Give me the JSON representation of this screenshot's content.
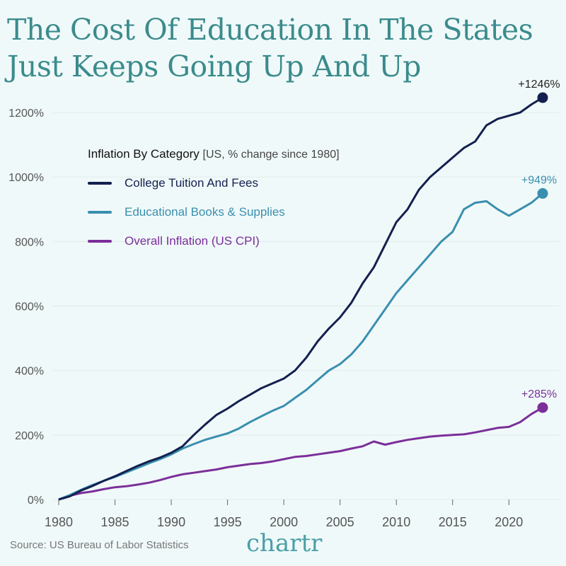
{
  "title_lines": [
    "The Cost Of Education In The States",
    "Just Keeps Going Up And Up"
  ],
  "source": "Source: US Bureau of Labor Statistics",
  "logo": "chartr",
  "chart_data": {
    "type": "line",
    "title": "The Cost Of Education In The States Just Keeps Going Up And Up",
    "legend_title": "Inflation By Category",
    "legend_subtitle": "[US, % change since 1980]",
    "legend_position": "top-left",
    "xlim": [
      1980,
      2023
    ],
    "ylim": [
      0,
      1200
    ],
    "x_ticks": [
      1980,
      1985,
      1990,
      1995,
      2000,
      2005,
      2010,
      2015,
      2020
    ],
    "x_tick_labels": [
      "1980",
      "1985",
      "1990",
      "1995",
      "2000",
      "2005",
      "2010",
      "2015",
      "2020"
    ],
    "y_ticks": [
      0,
      200,
      400,
      600,
      800,
      1000,
      1200
    ],
    "y_tick_labels": [
      "0%",
      "200%",
      "400%",
      "600%",
      "800%",
      "1000%",
      "1200%"
    ],
    "grid": true,
    "x": [
      1980,
      1981,
      1982,
      1983,
      1984,
      1985,
      1986,
      1987,
      1988,
      1989,
      1990,
      1991,
      1992,
      1993,
      1994,
      1995,
      1996,
      1997,
      1998,
      1999,
      2000,
      2001,
      2002,
      2003,
      2004,
      2005,
      2006,
      2007,
      2008,
      2009,
      2010,
      2011,
      2012,
      2013,
      2014,
      2015,
      2016,
      2017,
      2018,
      2019,
      2020,
      2021,
      2022,
      2023
    ],
    "series": [
      {
        "name": "College Tuition And Fees",
        "color": "#13204f",
        "end_label": "+1246%",
        "values": [
          0,
          10,
          28,
          42,
          58,
          72,
          88,
          104,
          118,
          130,
          145,
          165,
          200,
          232,
          262,
          282,
          305,
          325,
          345,
          360,
          375,
          400,
          440,
          490,
          530,
          565,
          610,
          670,
          720,
          790,
          860,
          900,
          960,
          1000,
          1030,
          1060,
          1090,
          1110,
          1160,
          1180,
          1190,
          1200,
          1225,
          1246
        ]
      },
      {
        "name": "Educational Books & Supplies",
        "color": "#3a8fb0",
        "end_label": "+949%",
        "values": [
          0,
          14,
          30,
          45,
          58,
          70,
          84,
          98,
          112,
          125,
          140,
          158,
          172,
          185,
          195,
          205,
          220,
          240,
          258,
          275,
          290,
          315,
          340,
          370,
          400,
          420,
          450,
          490,
          540,
          590,
          640,
          680,
          720,
          760,
          800,
          830,
          900,
          920,
          925,
          900,
          880,
          900,
          920,
          949
        ]
      },
      {
        "name": "Overall Inflation (US CPI)",
        "color": "#7b2f9a",
        "end_label": "+285%",
        "values": [
          0,
          12,
          20,
          25,
          32,
          38,
          41,
          46,
          52,
          60,
          70,
          78,
          83,
          88,
          93,
          100,
          105,
          110,
          113,
          118,
          125,
          132,
          135,
          140,
          145,
          150,
          158,
          165,
          180,
          170,
          178,
          185,
          190,
          195,
          198,
          200,
          202,
          208,
          215,
          222,
          225,
          240,
          265,
          285
        ]
      }
    ]
  }
}
